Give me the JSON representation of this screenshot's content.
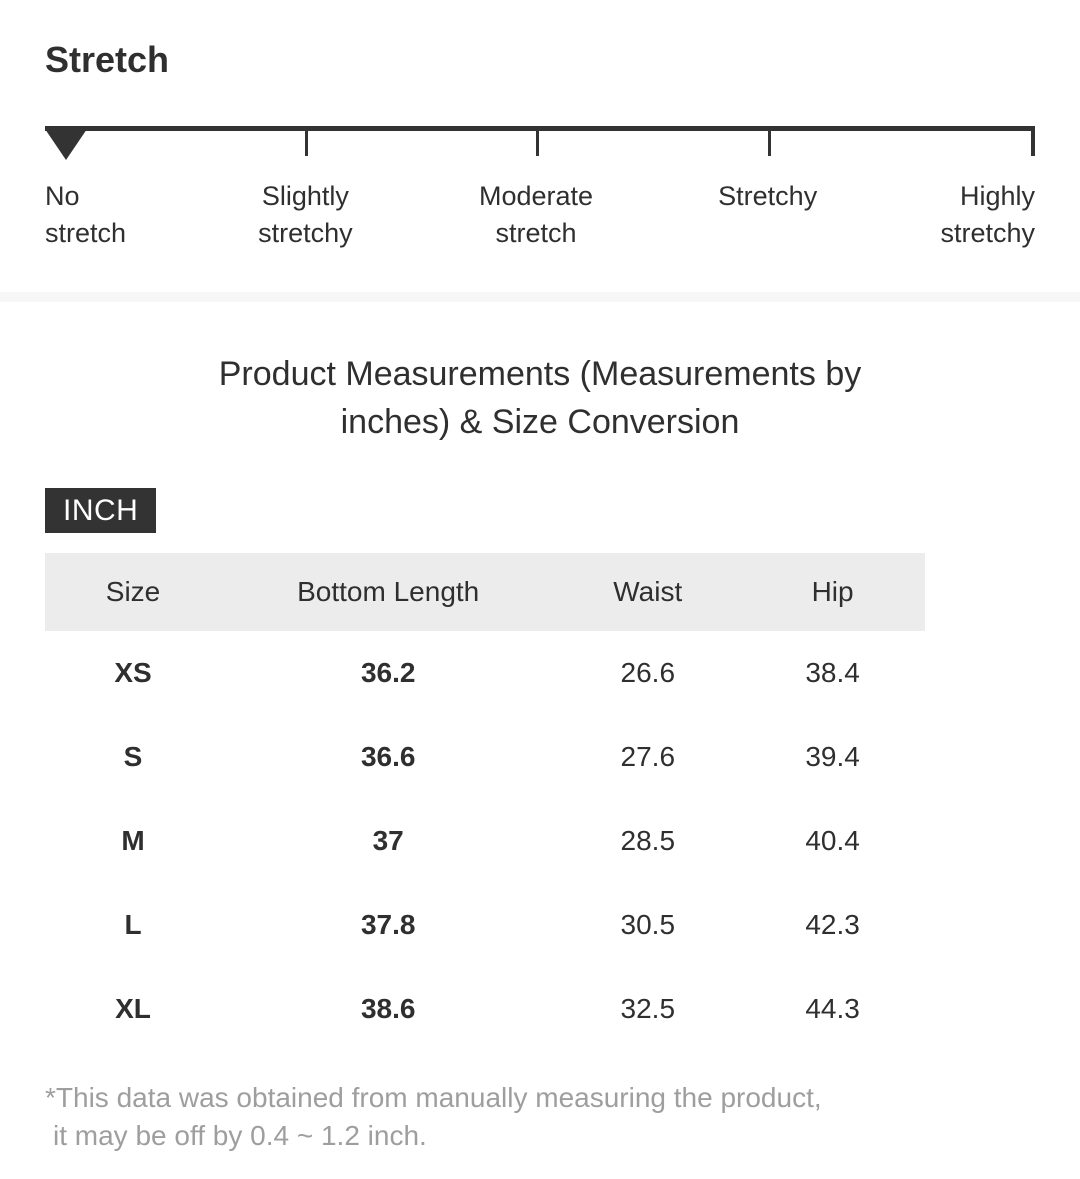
{
  "stretch": {
    "title": "Stretch",
    "selected_index": 0,
    "selected_label": "No stretch",
    "levels": [
      {
        "label": "No stretch"
      },
      {
        "label": "Slightly stretchy"
      },
      {
        "label": "Moderate stretch"
      },
      {
        "label": "Stretchy"
      },
      {
        "label": "Highly stretchy"
      }
    ]
  },
  "measurements": {
    "title_line1": "Product Measurements (Measurements by",
    "title_line2": "inches) & Size Conversion",
    "unit_badge": "INCH",
    "table": {
      "headers": [
        "Size",
        "Bottom Length",
        "Waist",
        "Hip"
      ],
      "rows": [
        {
          "size": "XS",
          "bottom_length": "36.2",
          "waist": "26.6",
          "hip": "38.4"
        },
        {
          "size": "S",
          "bottom_length": "36.6",
          "waist": "27.6",
          "hip": "39.4"
        },
        {
          "size": "M",
          "bottom_length": "37",
          "waist": "28.5",
          "hip": "40.4"
        },
        {
          "size": "L",
          "bottom_length": "37.8",
          "waist": "30.5",
          "hip": "42.3"
        },
        {
          "size": "XL",
          "bottom_length": "38.6",
          "waist": "32.5",
          "hip": "44.3"
        }
      ]
    },
    "footnote_line1": "*This data was obtained from manually measuring the product,",
    "footnote_line2": "it may be off by 0.4 ~ 1.2 inch."
  },
  "colors": {
    "text_dark": "#2f2f2f",
    "scale_marker": "#333333",
    "table_header_bg": "#ececec",
    "divider_bg": "#f7f7f7",
    "footnote_gray": "#9e9e9e",
    "badge_bg": "#333333",
    "badge_text": "#ffffff"
  }
}
